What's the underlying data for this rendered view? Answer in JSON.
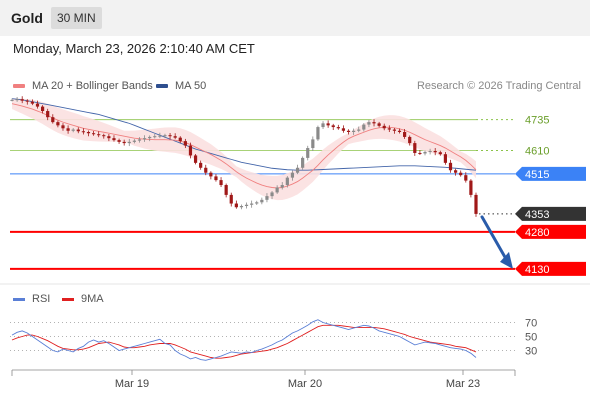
{
  "header": {
    "symbol": "Gold",
    "timeframe": "30 MIN"
  },
  "datetime": "Monday, March 23, 2026 2:10:40 AM CET",
  "legend": {
    "ma20_label": "MA 20 + Bollinger Bands",
    "ma50_label": "MA 50",
    "research": "Research © 2026 Trading Central"
  },
  "rsi_legend": {
    "rsi_label": "RSI",
    "ma9_label": "9MA"
  },
  "colors": {
    "ma20": "#f08080",
    "band_fill": "#fbe0e0",
    "ma50": "#4466aa",
    "support": "#ff0000",
    "pivot": "#3b82f6",
    "resistance": "#8bc34a",
    "candle_up": "#8a8a8a",
    "candle_down": "#a01818",
    "arrow": "#2a5caa",
    "rsi": "#5a7fd6",
    "rsi_ma": "#e02020",
    "last_price": "#333333"
  },
  "chart_data": {
    "type": "candlestick",
    "x_ticks": [
      "Mar 19",
      "Mar 20",
      "Mar 23"
    ],
    "ylim": [
      4085,
      4835
    ],
    "levels": [
      {
        "value": 4735,
        "label": "4735",
        "kind": "resistance"
      },
      {
        "value": 4610,
        "label": "4610",
        "kind": "resistance"
      },
      {
        "value": 4515,
        "label": "4515",
        "kind": "pivot"
      },
      {
        "value": 4280,
        "label": "4280",
        "kind": "support"
      },
      {
        "value": 4130,
        "label": "4130",
        "kind": "support"
      }
    ],
    "last_price": {
      "value": 4353,
      "label": "4353"
    },
    "close": [
      4815,
      4818,
      4812,
      4808,
      4800,
      4788,
      4770,
      4745,
      4725,
      4712,
      4700,
      4690,
      4695,
      4688,
      4685,
      4680,
      4676,
      4672,
      4668,
      4660,
      4652,
      4645,
      4640,
      4645,
      4650,
      4655,
      4660,
      4665,
      4668,
      4670,
      4672,
      4668,
      4662,
      4648,
      4630,
      4590,
      4560,
      4540,
      4520,
      4505,
      4490,
      4470,
      4430,
      4395,
      4380,
      4385,
      4390,
      4395,
      4400,
      4410,
      4425,
      4440,
      4460,
      4470,
      4500,
      4520,
      4540,
      4580,
      4620,
      4655,
      4705,
      4720,
      4712,
      4705,
      4700,
      4690,
      4685,
      4690,
      4695,
      4715,
      4725,
      4720,
      4710,
      4700,
      4695,
      4690,
      4685,
      4665,
      4640,
      4600,
      4598,
      4604,
      4608,
      4603,
      4595,
      4560,
      4530,
      4520,
      4510,
      4488,
      4430,
      4353
    ],
    "ma20": [
      4800,
      4795,
      4790,
      4784,
      4778,
      4770,
      4762,
      4752,
      4742,
      4733,
      4725,
      4718,
      4712,
      4706,
      4700,
      4696,
      4692,
      4688,
      4684,
      4680,
      4676,
      4672,
      4668,
      4664,
      4660,
      4658,
      4656,
      4655,
      4654,
      4654,
      4654,
      4653,
      4652,
      4648,
      4642,
      4634,
      4624,
      4614,
      4604,
      4594,
      4582,
      4570,
      4556,
      4540,
      4524,
      4510,
      4498,
      4488,
      4478,
      4470,
      4464,
      4460,
      4458,
      4460,
      4466,
      4474,
      4484,
      4498,
      4514,
      4530,
      4550,
      4572,
      4592,
      4610,
      4628,
      4644,
      4658,
      4668,
      4676,
      4684,
      4692,
      4698,
      4702,
      4704,
      4704,
      4702,
      4698,
      4692,
      4684,
      4674,
      4664,
      4654,
      4646,
      4638,
      4630,
      4620,
      4608,
      4596,
      4584,
      4570,
      4552,
      4532
    ],
    "ma50": [
      4820,
      4818,
      4815,
      4812,
      4808,
      4804,
      4800,
      4796,
      4792,
      4788,
      4784,
      4780,
      4776,
      4772,
      4768,
      4764,
      4760,
      4756,
      4750,
      4744,
      4738,
      4732,
      4726,
      4720,
      4712,
      4704,
      4696,
      4688,
      4680,
      4672,
      4664,
      4656,
      4648,
      4640,
      4632,
      4624,
      4616,
      4610,
      4604,
      4598,
      4592,
      4586,
      4580,
      4574,
      4568,
      4562,
      4558,
      4554,
      4550,
      4546,
      4542,
      4538,
      4536,
      4534,
      4532,
      4531,
      4530,
      4530,
      4530,
      4531,
      4532,
      4533,
      4534,
      4535,
      4536,
      4537,
      4538,
      4539,
      4540,
      4541,
      4542,
      4543,
      4544,
      4545,
      4546,
      4547,
      4548,
      4548,
      4548,
      4548,
      4547,
      4546,
      4545,
      4544,
      4543,
      4542,
      4540,
      4538,
      4536,
      4534,
      4532,
      4530
    ],
    "rsi": {
      "ylim": [
        5,
        85
      ],
      "ticks": [
        70,
        50,
        30
      ],
      "rsi_values": [
        52,
        56,
        58,
        55,
        50,
        45,
        40,
        35,
        30,
        28,
        32,
        30,
        28,
        33,
        36,
        42,
        45,
        42,
        44,
        40,
        35,
        30,
        32,
        34,
        36,
        38,
        40,
        42,
        44,
        46,
        40,
        38,
        30,
        25,
        22,
        18,
        20,
        17,
        16,
        18,
        20,
        22,
        25,
        28,
        27,
        26,
        28,
        27,
        30,
        32,
        35,
        38,
        42,
        45,
        50,
        55,
        58,
        62,
        66,
        71,
        74,
        70,
        68,
        66,
        64,
        62,
        60,
        62,
        64,
        66,
        65,
        62,
        58,
        56,
        54,
        52,
        50,
        46,
        42,
        38,
        40,
        42,
        41,
        40,
        38,
        36,
        34,
        33,
        32,
        30,
        26,
        20
      ],
      "ma_values": [
        45,
        48,
        50,
        52,
        52,
        50,
        47,
        44,
        40,
        36,
        33,
        32,
        31,
        31,
        32,
        34,
        37,
        40,
        41,
        42,
        40,
        38,
        35,
        34,
        34,
        35,
        36,
        38,
        39,
        40,
        40,
        40,
        38,
        35,
        32,
        28,
        26,
        24,
        22,
        20,
        19,
        19,
        20,
        21,
        23,
        25,
        26,
        27,
        28,
        29,
        30,
        32,
        34,
        37,
        40,
        44,
        48,
        52,
        56,
        60,
        64,
        66,
        66,
        66,
        66,
        65,
        64,
        63,
        63,
        63,
        63,
        63,
        62,
        61,
        59,
        57,
        55,
        53,
        50,
        48,
        46,
        44,
        42,
        41,
        40,
        39,
        38,
        36,
        35,
        34,
        31,
        28
      ]
    }
  }
}
